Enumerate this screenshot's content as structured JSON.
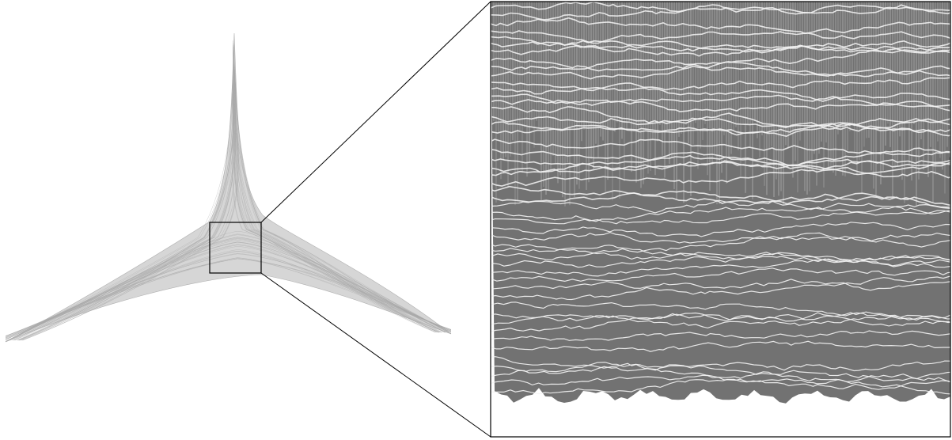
{
  "figure": {
    "colors": {
      "background": "#ffffff",
      "overview_strands": "#a8a8a8",
      "zoom_fill": "#6f6f6f",
      "zoom_gaps": "#f4f4f4",
      "outline": "#000000"
    }
  }
}
